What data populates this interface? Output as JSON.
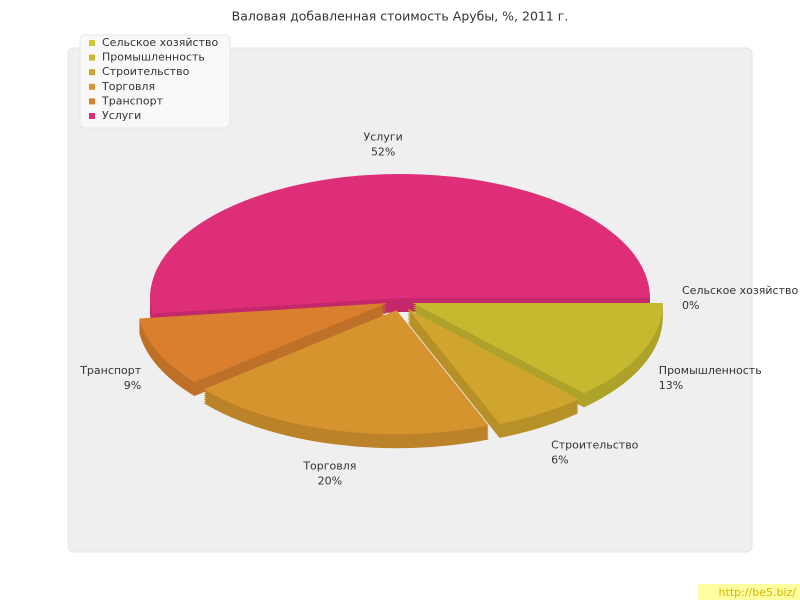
{
  "chart_data": {
    "type": "pie3d",
    "title": "Валовая добавленная стоимость Арубы, %, 2011 г.",
    "categories": [
      "Сельское хозяйство",
      "Промышленность",
      "Строительство",
      "Торговля",
      "Транспорт",
      "Услуги"
    ],
    "values": [
      0,
      13,
      6,
      20,
      9,
      52
    ],
    "value_labels": [
      "0%",
      "13%",
      "6%",
      "20%",
      "9%",
      "52%"
    ],
    "colors": [
      "#cbcb3a",
      "#c6b930",
      "#d0a52e",
      "#d6942f",
      "#d97f2d",
      "#df2e78"
    ],
    "legend": "top-left",
    "watermark": "http://be5.biz/"
  }
}
